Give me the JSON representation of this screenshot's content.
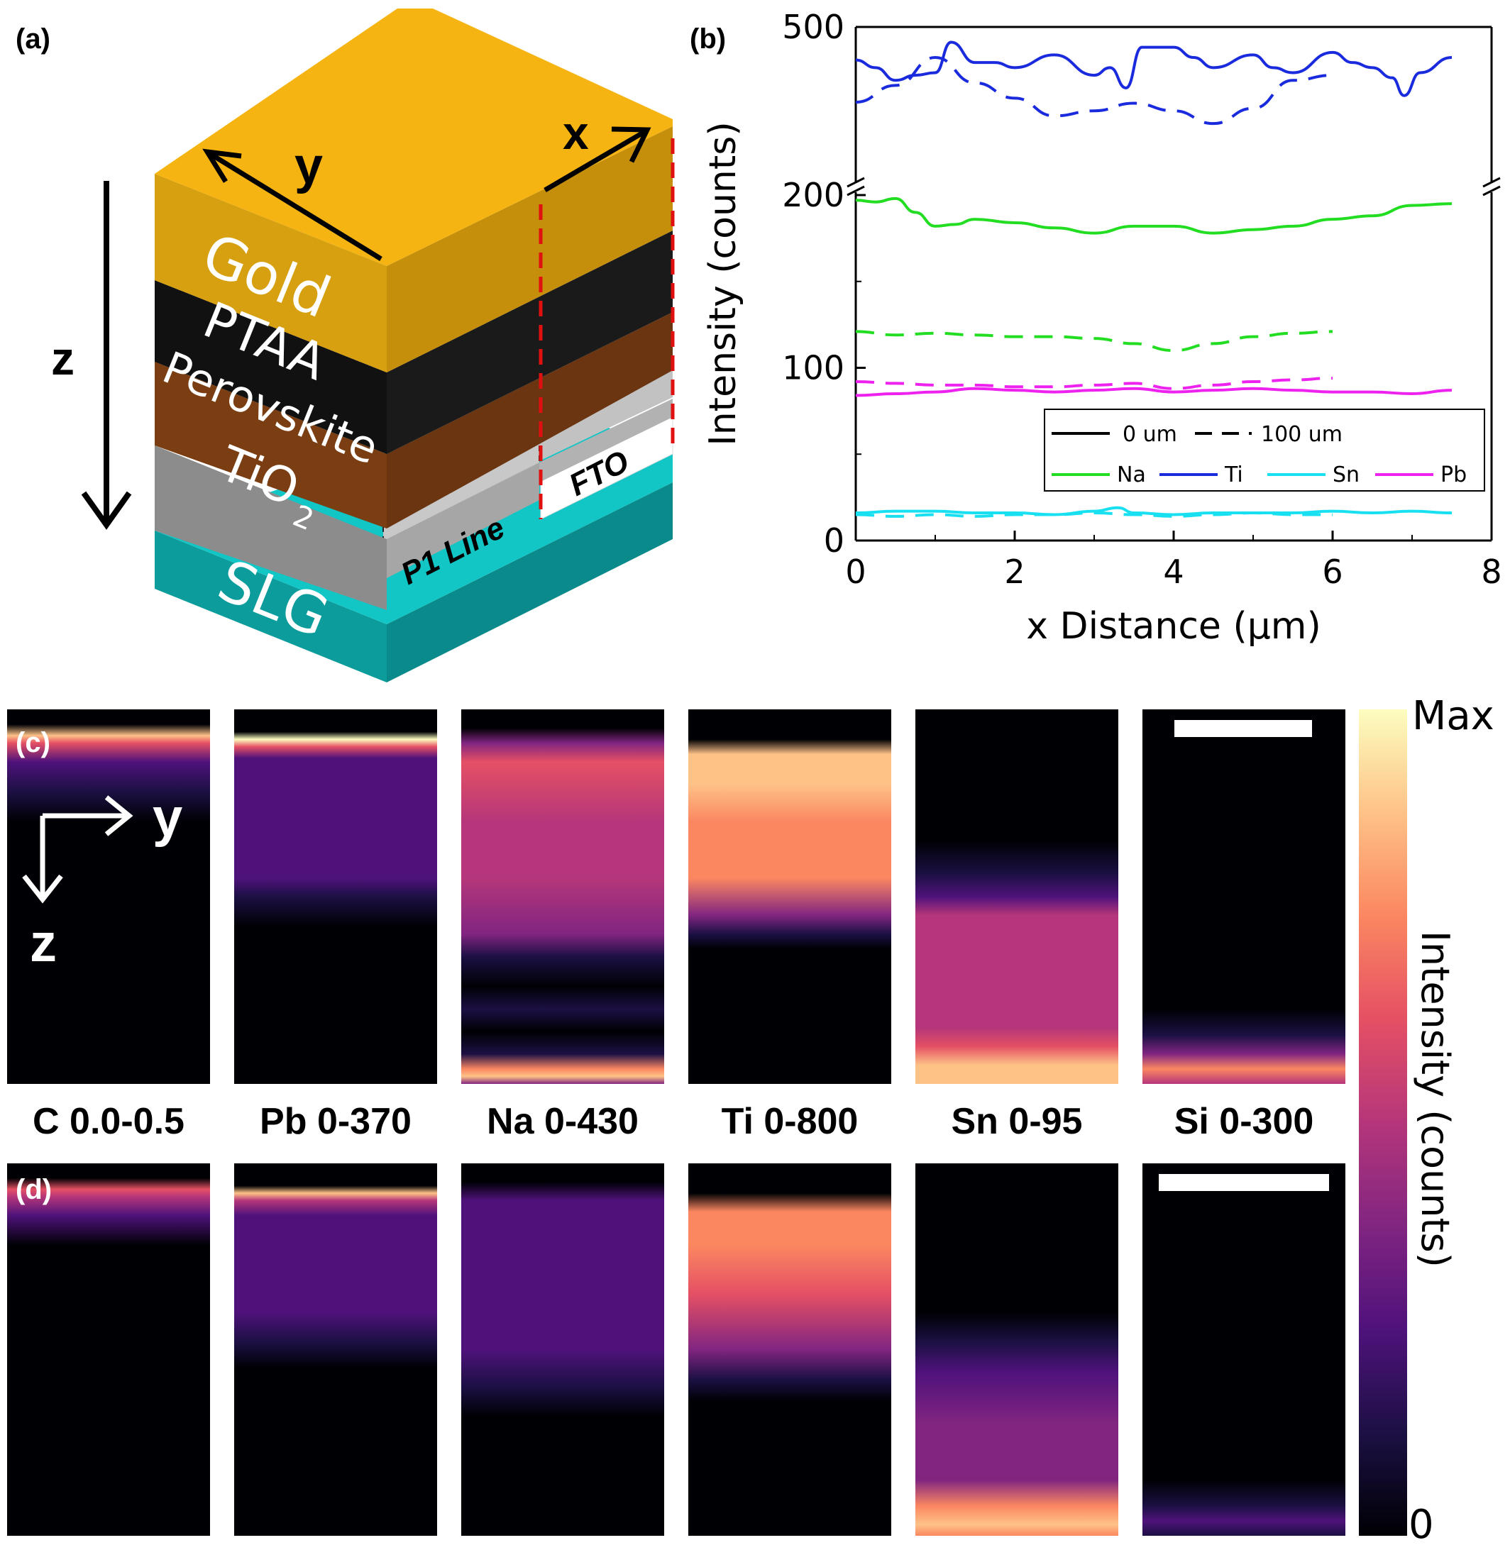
{
  "panel_a": {
    "letter": "(a)",
    "layers": [
      "Gold",
      "PTAA",
      "Perovskite",
      "TiO",
      "SLG"
    ],
    "tio2_subscript": "2",
    "p1_label": "P1 Line",
    "fto_label": "FTO",
    "axis_labels": {
      "x": "x",
      "y": "y",
      "z": "z"
    },
    "colors": {
      "gold": "#F5B412",
      "ptaa": "#111111",
      "perovskite": "#7A3E12",
      "tio2": "#9A9A9A",
      "slg": "#12C6C6",
      "fto": "#ffffff",
      "dashed": "#E01010"
    }
  },
  "panel_b": {
    "letter": "(b)",
    "legend": {
      "style_solid": "0 um",
      "style_dashed": "100 um",
      "elements": [
        {
          "name": "Na",
          "color": "#22DD22"
        },
        {
          "name": "Ti",
          "color": "#1A2BDD"
        },
        {
          "name": "Sn",
          "color": "#19E0F0"
        },
        {
          "name": "Pb",
          "color": "#EE22EE"
        }
      ]
    }
  },
  "chart_data": {
    "type": "line",
    "title": "",
    "xlabel": "x Distance (µm)",
    "ylabel": "Intensity (counts)",
    "xlim": [
      0,
      8
    ],
    "x_ticks": [
      "0",
      "2",
      "4",
      "6",
      "8"
    ],
    "y_ticks_lower": [
      "0",
      "100",
      "200"
    ],
    "y_ticks_upper": [
      "500"
    ],
    "y_axis_break": true,
    "lower_ylim": [
      0,
      200
    ],
    "upper_ylim": [
      200,
      500
    ],
    "series": [
      {
        "name": "Ti",
        "style": "solid",
        "color": "#1A2BDD",
        "x": [
          0,
          0.25,
          0.5,
          0.75,
          1,
          1.2,
          1.5,
          1.75,
          2,
          2.5,
          3,
          3.2,
          3.4,
          3.6,
          4,
          4.25,
          4.5,
          5,
          5.25,
          5.5,
          6,
          6.25,
          6.5,
          6.75,
          6.9,
          7.1,
          7.5
        ],
        "y": [
          435,
          420,
          395,
          405,
          410,
          470,
          430,
          430,
          420,
          445,
          405,
          420,
          380,
          460,
          460,
          440,
          420,
          445,
          420,
          410,
          450,
          430,
          420,
          400,
          365,
          410,
          440
        ]
      },
      {
        "name": "Ti",
        "style": "dashed",
        "color": "#1A2BDD",
        "x": [
          0,
          0.5,
          1,
          1.5,
          2,
          2.5,
          3,
          3.5,
          4,
          4.5,
          5,
          5.5,
          6
        ],
        "y": [
          352,
          385,
          440,
          390,
          360,
          325,
          335,
          350,
          335,
          310,
          340,
          395,
          405
        ]
      },
      {
        "name": "Na",
        "style": "solid",
        "color": "#22DD22",
        "x": [
          0,
          0.25,
          0.5,
          0.75,
          1,
          1.25,
          1.5,
          2,
          2.5,
          3,
          3.5,
          4,
          4.5,
          5,
          5.5,
          6,
          6.5,
          7,
          7.5
        ],
        "y": [
          197,
          196,
          198,
          190,
          182,
          183,
          186,
          184,
          181,
          178,
          182,
          182,
          178,
          180,
          182,
          186,
          188,
          194,
          195
        ]
      },
      {
        "name": "Na",
        "style": "dashed",
        "color": "#22DD22",
        "x": [
          0,
          0.5,
          1,
          1.5,
          2,
          2.5,
          3,
          3.5,
          4,
          4.5,
          5,
          5.5,
          6
        ],
        "y": [
          121,
          119,
          120,
          119,
          118,
          118,
          117,
          114,
          110,
          114,
          118,
          120,
          121
        ]
      },
      {
        "name": "Pb",
        "style": "solid",
        "color": "#EE22EE",
        "x": [
          0,
          0.5,
          1,
          1.5,
          2,
          2.5,
          3,
          3.5,
          4,
          4.5,
          5,
          5.5,
          6,
          6.5,
          7,
          7.5
        ],
        "y": [
          84,
          85,
          86,
          88,
          87,
          86,
          87,
          88,
          86,
          87,
          88,
          87,
          86,
          86,
          85,
          87
        ]
      },
      {
        "name": "Pb",
        "style": "dashed",
        "color": "#EE22EE",
        "x": [
          0,
          0.5,
          1,
          1.5,
          2,
          2.5,
          3,
          3.5,
          4,
          4.5,
          5,
          5.5,
          6
        ],
        "y": [
          92,
          91,
          90,
          90,
          89,
          89,
          90,
          91,
          88,
          90,
          92,
          93,
          94
        ]
      },
      {
        "name": "Sn",
        "style": "solid",
        "color": "#19E0F0",
        "x": [
          0,
          0.5,
          1,
          1.5,
          2,
          2.5,
          3,
          3.3,
          3.5,
          4,
          4.5,
          5,
          5.5,
          6,
          6.5,
          7,
          7.5
        ],
        "y": [
          16,
          17,
          17,
          16,
          16,
          15,
          17,
          19,
          16,
          15,
          16,
          16,
          16,
          17,
          16,
          17,
          16
        ]
      },
      {
        "name": "Sn",
        "style": "dashed",
        "color": "#19E0F0",
        "x": [
          0,
          0.5,
          1,
          1.5,
          2,
          2.5,
          3,
          3.5,
          4,
          4.5,
          5,
          5.5,
          6
        ],
        "y": [
          15,
          14,
          15,
          14,
          15,
          15,
          16,
          15,
          14,
          15,
          16,
          15,
          15
        ]
      }
    ]
  },
  "panel_c": {
    "letter": "(c)"
  },
  "panel_d": {
    "letter": "(d)"
  },
  "maps": [
    {
      "label": "C 0.0-0.5",
      "profile": "C"
    },
    {
      "label": "Pb 0-370",
      "profile": "Pb"
    },
    {
      "label": "Na 0-430",
      "profile": "Na"
    },
    {
      "label": "Ti 0-800",
      "profile": "Ti"
    },
    {
      "label": "Sn 0-95",
      "profile": "Sn"
    },
    {
      "label": "Si 0-300",
      "profile": "Si"
    }
  ],
  "inset_axes": {
    "y": "y",
    "z": "z"
  },
  "colorbar": {
    "max_label": "Max",
    "min_label": "0",
    "title": "Intensity (counts)",
    "stops": [
      "#000004",
      "#1c1044",
      "#4f127b",
      "#812581",
      "#b5367a",
      "#e55064",
      "#fb8761",
      "#fec287",
      "#fcfdbf"
    ]
  }
}
